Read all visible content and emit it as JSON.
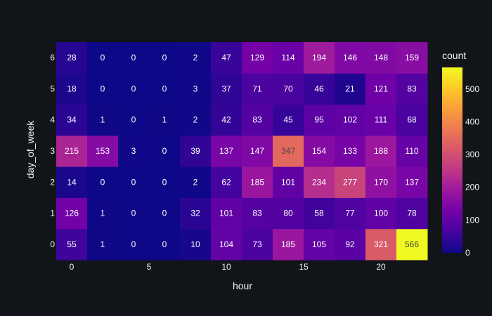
{
  "chart_data": {
    "type": "heatmap",
    "xlabel": "hour",
    "ylabel": "day_of_week",
    "x": [
      0,
      2,
      4,
      6,
      8,
      10,
      12,
      14,
      16,
      18,
      20,
      22
    ],
    "y": [
      0,
      1,
      2,
      3,
      4,
      5,
      6
    ],
    "x_ticks": [
      0,
      5,
      10,
      15,
      20
    ],
    "y_ticks": [
      0,
      1,
      2,
      3,
      4,
      5,
      6
    ],
    "x_range": [
      -1,
      23
    ],
    "z": [
      [
        55,
        1,
        0,
        0,
        10,
        104,
        73,
        185,
        105,
        92,
        321,
        566
      ],
      [
        126,
        1,
        0,
        0,
        32,
        101,
        83,
        80,
        58,
        77,
        100,
        78
      ],
      [
        14,
        0,
        0,
        0,
        2,
        62,
        185,
        101,
        234,
        277,
        170,
        137
      ],
      [
        215,
        153,
        3,
        0,
        39,
        137,
        147,
        347,
        154,
        133,
        188,
        110
      ],
      [
        34,
        1,
        0,
        1,
        2,
        42,
        83,
        45,
        95,
        102,
        111,
        68
      ],
      [
        18,
        0,
        0,
        0,
        3,
        37,
        71,
        70,
        46,
        21,
        121,
        83
      ],
      [
        28,
        0,
        0,
        0,
        2,
        47,
        129,
        114,
        194,
        146,
        148,
        159
      ]
    ],
    "colorbar": {
      "title": "count",
      "range": [
        0,
        566
      ],
      "ticks": [
        0,
        100,
        200,
        300,
        400,
        500
      ]
    },
    "colorscale": [
      "#0d0887",
      "#46039f",
      "#7201a8",
      "#9c179e",
      "#bd3786",
      "#d8576b",
      "#ed7953",
      "#fb9f3a",
      "#fdca26",
      "#f0f921"
    ],
    "background": "#111419",
    "text_color": "#f2f5fa",
    "grid": false
  }
}
